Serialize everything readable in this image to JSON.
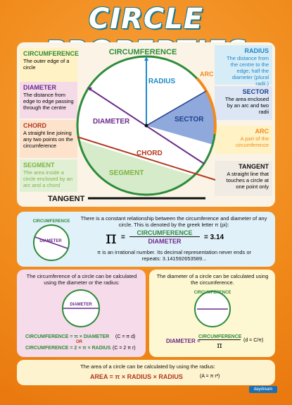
{
  "title": "CIRCLE PROPERTIES",
  "diagram_labels": {
    "circumference": "CIRCUMFERENCE",
    "radius": "RADIUS",
    "arc": "ARC",
    "diameter": "DIAMETER",
    "sector": "SECTOR",
    "chord": "CHORD",
    "segment": "SEGMENT",
    "tangent": "TANGENT"
  },
  "left_boxes": [
    {
      "heading": "CIRCUMFERENCE",
      "text": "The outer edge of a circle"
    },
    {
      "heading": "DIAMETER",
      "text": "The distance from edge to edge passing through the centre"
    },
    {
      "heading": "CHORD",
      "text": "A straight line joining any two points on the circumference"
    },
    {
      "heading": "SEGMENT",
      "text": "The area inside a circle enclosed by an arc and a chord"
    }
  ],
  "right_boxes": [
    {
      "heading": "RADIUS",
      "text": "The distance from the centre to the edge; half the diameter (plural radii.)"
    },
    {
      "heading": "SECTOR",
      "text": "The area enclosed by an arc and two radii"
    },
    {
      "heading": "ARC",
      "text": "A part of the circumference"
    },
    {
      "heading": "TANGENT",
      "text": "A straight line that touches a circle at one point only"
    }
  ],
  "pi_section": {
    "intro": "There is a constant relationship between the circumference and diameter of any circle. This is denoted by the greek letter π (pi):",
    "pi_symbol": "π",
    "equals": "=",
    "numerator": "CIRCUMFERENCE",
    "denominator": "DIAMETER",
    "value": "= 3.14",
    "irrational": "π is an irrational number. Its decimal representation never ends or repeats: 3.141592653589...",
    "diagram_circumference": "CIRCUMFERENCE",
    "diagram_diameter": "DIAMETER"
  },
  "circ_section": {
    "intro": "The circumference of a circle can be calculated using the diameter or the radius:",
    "diagram_diameter": "DIAMETER",
    "formula1": "CIRCUMFERENCE = π × DIAMETER",
    "formula1_short": "(C = π d)",
    "or": "OR",
    "formula2": "CIRCUMFERENCE = 2 × π × RADIUS",
    "formula2_short": "(C = 2 π r)"
  },
  "diam_section": {
    "intro": "The diameter of a circle can be calculated using the circumference.",
    "diagram_circumference": "CIRCUMFERENCE",
    "lhs": "DIAMETER =",
    "numerator": "CIRCUMFERENCE",
    "denominator": "π",
    "short": "(d = C/π)"
  },
  "area_section": {
    "intro": "The area of a circle can be calculated by using the radius:",
    "formula": "AREA = π × RADIUS × RADIUS",
    "short": "(A = π r²)"
  },
  "logo": "daydream"
}
